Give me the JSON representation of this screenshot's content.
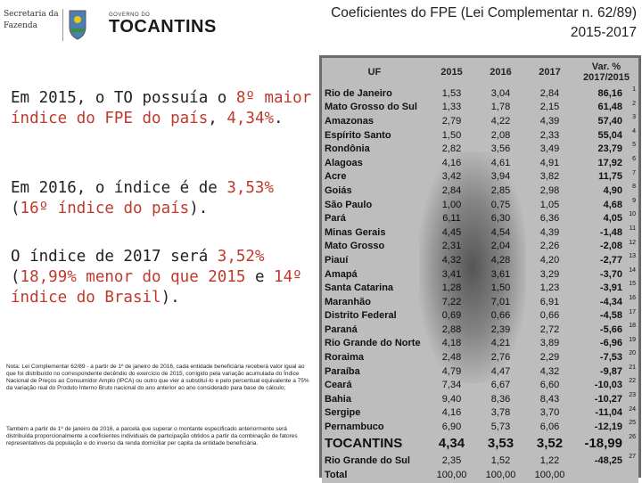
{
  "header": {
    "sec_line1": "Secretaria da",
    "sec_line2": "Fazenda",
    "gov_small": "GOVERNO DO",
    "gov_big": "TOCANTINS",
    "title_line1": "Coeficientes do FPE (Lei Complementar n. 62/89)",
    "title_line2": "2015-2017"
  },
  "text": {
    "p1_a": "Em 2015, o TO possuía o ",
    "p1_b": "8º maior índice do FPE do país",
    "p1_c": ", ",
    "p1_d": "4,34%",
    "p1_e": ".",
    "p2_a": "Em 2016, o índice é de ",
    "p2_b": "3,53%",
    "p2_c": " (",
    "p2_d": "16º índice do país",
    "p2_e": ").",
    "p3_a": "O índice de 2017 será ",
    "p3_b": "3,52%",
    "p3_c": " (",
    "p3_d": "18,99% menor do que 2015",
    "p3_e": " e ",
    "p3_f": "14º índice do Brasil",
    "p3_g": ").",
    "note1": "Nota: Lei Complementar 62/89 - a partir de 1º de janeiro de 2016, cada entidade beneficiária receberá valor igual ao que foi distribuído no correspondente decêndio do exercício de 2015, corrigido pela variação acumulada do Índice Nacional de Preços ao Consumidor Amplo (IPCA) ou outro que vier a substituí-lo e pelo percentual equivalente a 75% da variação real do Produto Interno Bruto nacional do ano anterior ao ano considerado para base de cálculo;",
    "note2": "Também a partir de 1º de janeiro de 2016, a parcela que superar o montante especificado anteriormente será distribuída proporcionalmente a coeficientes individuais de participação obtidos a partir da combinação de fatores representativos da população e do inverso da renda domiciliar per capita da entidade beneficiária."
  },
  "table": {
    "headers": [
      "UF",
      "2015",
      "2016",
      "2017",
      "Var. % 2017/2015"
    ],
    "rows": [
      {
        "uf": "Rio de Janeiro",
        "y2015": "1,53",
        "y2016": "3,04",
        "y2017": "2,84",
        "var": "86,16",
        "rank": "1"
      },
      {
        "uf": "Mato Grosso do Sul",
        "y2015": "1,33",
        "y2016": "1,78",
        "y2017": "2,15",
        "var": "61,48",
        "rank": "2"
      },
      {
        "uf": "Amazonas",
        "y2015": "2,79",
        "y2016": "4,22",
        "y2017": "4,39",
        "var": "57,40",
        "rank": "3"
      },
      {
        "uf": "Espírito Santo",
        "y2015": "1,50",
        "y2016": "2,08",
        "y2017": "2,33",
        "var": "55,04",
        "rank": "4"
      },
      {
        "uf": "Rondônia",
        "y2015": "2,82",
        "y2016": "3,56",
        "y2017": "3,49",
        "var": "23,79",
        "rank": "5"
      },
      {
        "uf": "Alagoas",
        "y2015": "4,16",
        "y2016": "4,61",
        "y2017": "4,91",
        "var": "17,92",
        "rank": "6"
      },
      {
        "uf": "Acre",
        "y2015": "3,42",
        "y2016": "3,94",
        "y2017": "3,82",
        "var": "11,75",
        "rank": "7"
      },
      {
        "uf": "Goiás",
        "y2015": "2,84",
        "y2016": "2,85",
        "y2017": "2,98",
        "var": "4,90",
        "rank": "8"
      },
      {
        "uf": "São Paulo",
        "y2015": "1,00",
        "y2016": "0,75",
        "y2017": "1,05",
        "var": "4,68",
        "rank": "9"
      },
      {
        "uf": "Pará",
        "y2015": "6,11",
        "y2016": "6,30",
        "y2017": "6,36",
        "var": "4,05",
        "rank": "10"
      },
      {
        "uf": "Minas Gerais",
        "y2015": "4,45",
        "y2016": "4,54",
        "y2017": "4,39",
        "var": "-1,48",
        "rank": "11"
      },
      {
        "uf": "Mato Grosso",
        "y2015": "2,31",
        "y2016": "2,04",
        "y2017": "2,26",
        "var": "-2,08",
        "rank": "12"
      },
      {
        "uf": "Piauí",
        "y2015": "4,32",
        "y2016": "4,28",
        "y2017": "4,20",
        "var": "-2,77",
        "rank": "13"
      },
      {
        "uf": "Amapá",
        "y2015": "3,41",
        "y2016": "3,61",
        "y2017": "3,29",
        "var": "-3,70",
        "rank": "14"
      },
      {
        "uf": "Santa Catarina",
        "y2015": "1,28",
        "y2016": "1,50",
        "y2017": "1,23",
        "var": "-3,91",
        "rank": "15"
      },
      {
        "uf": "Maranhão",
        "y2015": "7,22",
        "y2016": "7,01",
        "y2017": "6,91",
        "var": "-4,34",
        "rank": "16"
      },
      {
        "uf": "Distrito Federal",
        "y2015": "0,69",
        "y2016": "0,66",
        "y2017": "0,66",
        "var": "-4,58",
        "rank": "17"
      },
      {
        "uf": "Paraná",
        "y2015": "2,88",
        "y2016": "2,39",
        "y2017": "2,72",
        "var": "-5,66",
        "rank": "18"
      },
      {
        "uf": "Rio Grande do Norte",
        "y2015": "4,18",
        "y2016": "4,21",
        "y2017": "3,89",
        "var": "-6,96",
        "rank": "19"
      },
      {
        "uf": "Roraima",
        "y2015": "2,48",
        "y2016": "2,76",
        "y2017": "2,29",
        "var": "-7,53",
        "rank": "20"
      },
      {
        "uf": "Paraíba",
        "y2015": "4,79",
        "y2016": "4,47",
        "y2017": "4,32",
        "var": "-9,87",
        "rank": "21"
      },
      {
        "uf": "Ceará",
        "y2015": "7,34",
        "y2016": "6,67",
        "y2017": "6,60",
        "var": "-10,03",
        "rank": "22"
      },
      {
        "uf": "Bahia",
        "y2015": "9,40",
        "y2016": "8,36",
        "y2017": "8,43",
        "var": "-10,27",
        "rank": "23"
      },
      {
        "uf": "Sergipe",
        "y2015": "4,16",
        "y2016": "3,78",
        "y2017": "3,70",
        "var": "-11,04",
        "rank": "24"
      },
      {
        "uf": "Pernambuco",
        "y2015": "6,90",
        "y2016": "5,73",
        "y2017": "6,06",
        "var": "-12,19",
        "rank": "25"
      },
      {
        "uf": "TOCANTINS",
        "y2015": "4,34",
        "y2016": "3,53",
        "y2017": "3,52",
        "var": "-18,99",
        "rank": "26",
        "highlight": true
      },
      {
        "uf": "Rio Grande do Sul",
        "y2015": "2,35",
        "y2016": "1,52",
        "y2017": "1,22",
        "var": "-48,25",
        "rank": "27"
      }
    ],
    "total": {
      "uf": "Total",
      "y2015": "100,00",
      "y2016": "100,00",
      "y2017": "100,00",
      "var": ""
    }
  }
}
